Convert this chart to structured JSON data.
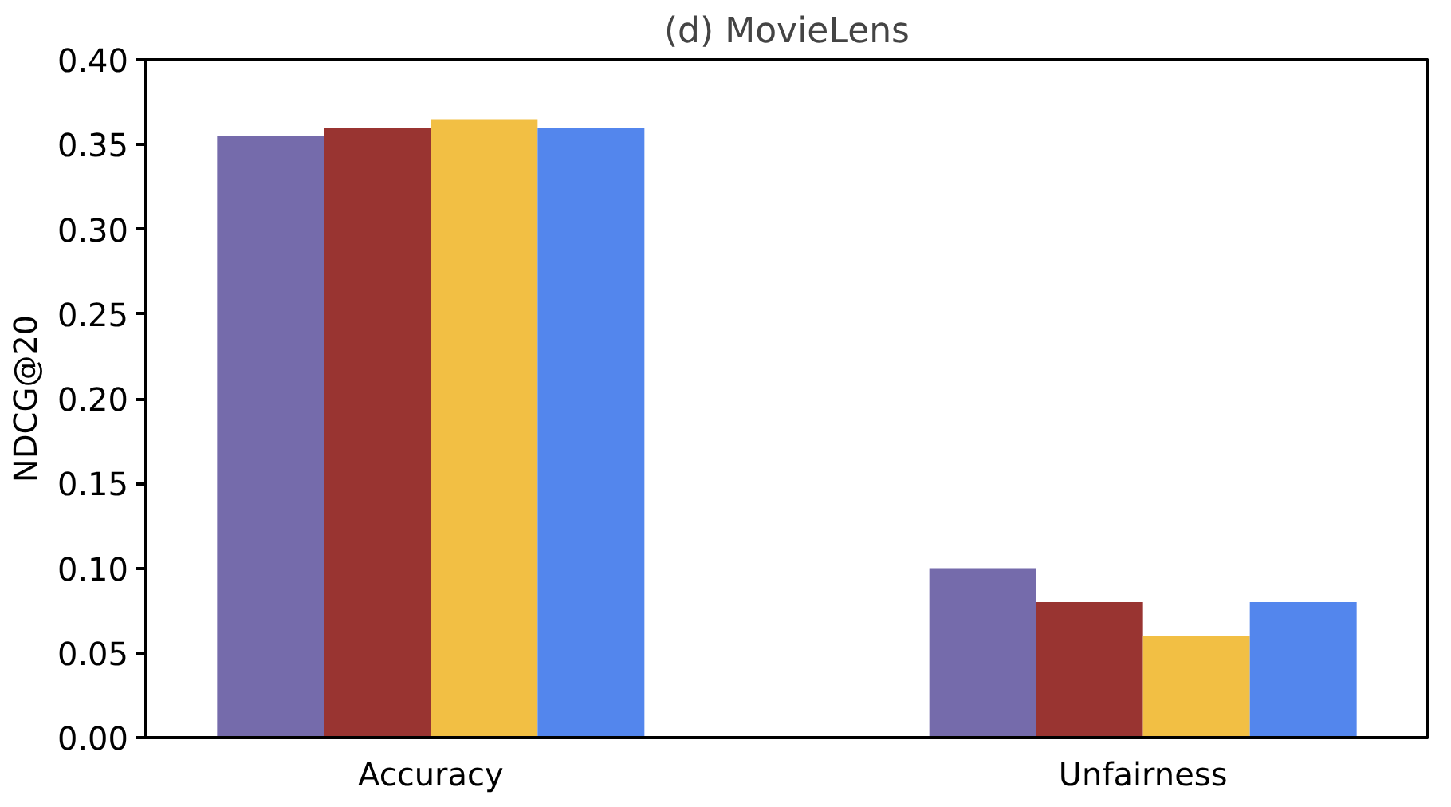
{
  "chart_data": {
    "type": "bar",
    "title": "(d) MovieLens",
    "ylabel": "NDCG@20",
    "categories": [
      "Accuracy",
      "Unfairness"
    ],
    "series": [
      {
        "color": "#756bab",
        "values": [
          0.355,
          0.1
        ]
      },
      {
        "color": "#993431",
        "values": [
          0.36,
          0.08
        ]
      },
      {
        "color": "#f2bf44",
        "values": [
          0.365,
          0.06
        ]
      },
      {
        "color": "#5386ed",
        "values": [
          0.36,
          0.08
        ]
      }
    ],
    "ylim": [
      0,
      0.4
    ],
    "yticks": [
      {
        "value": 0,
        "label": "0.00"
      },
      0.05,
      {
        "value": 0.1,
        "label": "0.10"
      },
      0.15,
      {
        "value": 0.2,
        "label": "0.20"
      },
      0.25,
      {
        "value": 0.3,
        "label": "0.30"
      },
      0.35,
      {
        "value": 0.4,
        "label": "0.40"
      }
    ],
    "grid": false
  }
}
